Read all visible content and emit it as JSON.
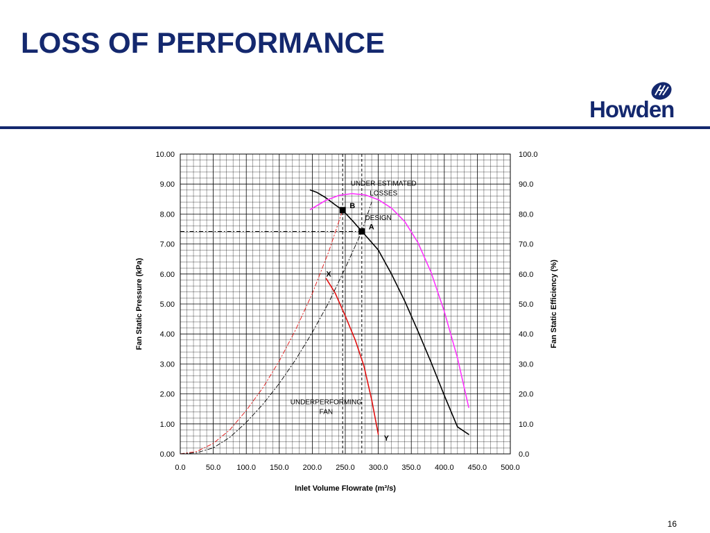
{
  "slide": {
    "title": "LOSS OF PERFORMANCE",
    "page_number": "16"
  },
  "logo": {
    "text": "Howden",
    "icon": "howden-logo-mark",
    "color": "#14286e"
  },
  "colors": {
    "title": "#14286e",
    "header_rule": "#14286e",
    "fan_curve": "#000000",
    "efficiency_curve": "#ff33ff",
    "underperforming_fan": "#e01010",
    "system_resistance": "#000000",
    "grid": "#000000"
  },
  "chart_data": {
    "type": "line",
    "xlabel": "Inlet Volume Flowrate (m³/s)",
    "ylabel": "Fan Static Pressure (kPa)",
    "y2label": "Fan Static Efficiency (%)",
    "xlim": [
      0,
      500
    ],
    "ylim": [
      0,
      10
    ],
    "y2lim": [
      0,
      100
    ],
    "x_ticks": [
      "0.0",
      "50.0",
      "100.0",
      "150.0",
      "200.0",
      "250.0",
      "300.0",
      "350.0",
      "400.0",
      "450.0",
      "500.0"
    ],
    "y_ticks": [
      "0.00",
      "1.00",
      "2.00",
      "3.00",
      "4.00",
      "5.00",
      "6.00",
      "7.00",
      "8.00",
      "9.00",
      "10.00"
    ],
    "y2_ticks": [
      "0.0",
      "10.0",
      "20.0",
      "30.0",
      "40.0",
      "50.0",
      "60.0",
      "70.0",
      "80.0",
      "90.0",
      "100.0"
    ],
    "grid": true,
    "series": [
      {
        "style": "solid",
        "axis": "y",
        "x": [
          197,
          207,
          220,
          235,
          246,
          262,
          280,
          300,
          320,
          340,
          360,
          380,
          400,
          420,
          437
        ],
        "y": [
          8.8,
          8.72,
          8.55,
          8.3,
          8.13,
          7.75,
          7.3,
          6.8,
          6.0,
          5.1,
          4.1,
          3.05,
          1.95,
          0.9,
          0.65
        ]
      },
      {
        "style": "solid",
        "axis": "y2",
        "x": [
          197,
          220,
          240,
          260,
          280,
          300,
          320,
          340,
          360,
          380,
          400,
          420,
          437
        ],
        "y": [
          81.5,
          84.5,
          86.2,
          86.8,
          86.4,
          84.8,
          82.0,
          77.5,
          70.5,
          60.5,
          47.5,
          32.0,
          15.5
        ]
      },
      {
        "style": "solid",
        "axis": "y",
        "x": [
          221,
          228,
          235,
          250,
          265,
          278,
          290,
          300
        ],
        "y": [
          5.85,
          5.6,
          5.35,
          4.6,
          3.8,
          2.95,
          1.8,
          0.65
        ]
      },
      {
        "style": "dash-dot",
        "axis": "y",
        "x": [
          0,
          25,
          50,
          75,
          100,
          125,
          150,
          175,
          200,
          225,
          246
        ],
        "y": [
          0,
          0.08,
          0.35,
          0.8,
          1.45,
          2.2,
          3.1,
          4.15,
          5.35,
          6.75,
          8.13
        ]
      },
      {
        "style": "dash-dot",
        "axis": "y",
        "x": [
          0,
          25,
          50,
          75,
          100,
          125,
          150,
          175,
          200,
          225,
          250,
          275,
          290
        ],
        "y": [
          0,
          0.04,
          0.2,
          0.55,
          1.05,
          1.65,
          2.35,
          3.15,
          4.05,
          5.05,
          6.2,
          7.42,
          8.4
        ]
      }
    ],
    "reference_lines": [
      {
        "orientation": "vertical",
        "x": 246,
        "style": "dashed"
      },
      {
        "orientation": "vertical",
        "x": 275,
        "style": "dashed"
      },
      {
        "orientation": "horizontal",
        "y": 7.42,
        "x_to": 275,
        "style": "dash-dot"
      }
    ],
    "points": [
      {
        "label": "B",
        "x": 246,
        "y": 8.13,
        "marker": "square"
      },
      {
        "label": "A",
        "x": 275,
        "y": 7.42,
        "marker": "square"
      },
      {
        "label": "X",
        "x": 221,
        "y": 5.85,
        "marker": "none"
      },
      {
        "label": "Y",
        "x": 300,
        "y": 0.65,
        "marker": "none"
      }
    ],
    "annotations": [
      {
        "lines": [
          "UNDER ESTIMATED",
          "LOSSES"
        ],
        "x": 308,
        "y": 8.95
      },
      {
        "lines": [
          "DESIGN"
        ],
        "x": 300,
        "y": 7.8
      },
      {
        "lines": [
          "UNDERPERFORMING",
          "FAN"
        ],
        "x": 221,
        "y": 1.65
      }
    ]
  }
}
